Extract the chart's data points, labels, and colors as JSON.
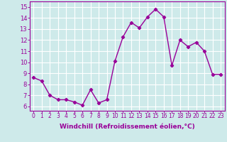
{
  "x": [
    0,
    1,
    2,
    3,
    4,
    5,
    6,
    7,
    8,
    9,
    10,
    11,
    12,
    13,
    14,
    15,
    16,
    17,
    18,
    19,
    20,
    21,
    22,
    23
  ],
  "y": [
    8.6,
    8.3,
    7.0,
    6.6,
    6.6,
    6.4,
    6.1,
    7.5,
    6.3,
    6.6,
    10.1,
    12.3,
    13.6,
    13.1,
    14.1,
    14.8,
    14.1,
    9.7,
    12.0,
    11.4,
    11.8,
    11.0,
    8.9,
    8.9
  ],
  "line_color": "#990099",
  "marker": "D",
  "marker_size": 2.2,
  "linewidth": 1.0,
  "xlabel": "Windchill (Refroidissement éolien,°C)",
  "xlabel_fontsize": 6.5,
  "xtick_labels": [
    "0",
    "1",
    "2",
    "3",
    "4",
    "5",
    "6",
    "7",
    "8",
    "9",
    "10",
    "11",
    "12",
    "13",
    "14",
    "15",
    "16",
    "17",
    "18",
    "19",
    "20",
    "21",
    "22",
    "23"
  ],
  "ytick_labels": [
    "6",
    "7",
    "8",
    "9",
    "10",
    "11",
    "12",
    "13",
    "14",
    "15"
  ],
  "yticks": [
    6,
    7,
    8,
    9,
    10,
    11,
    12,
    13,
    14,
    15
  ],
  "ylim": [
    5.6,
    15.5
  ],
  "xlim": [
    -0.5,
    23.5
  ],
  "bg_color": "#ceeaea",
  "grid_color": "#ffffff",
  "tick_color": "#990099",
  "label_color": "#990099",
  "spine_color": "#990099",
  "xtick_fontsize": 5.5,
  "ytick_fontsize": 6.0
}
